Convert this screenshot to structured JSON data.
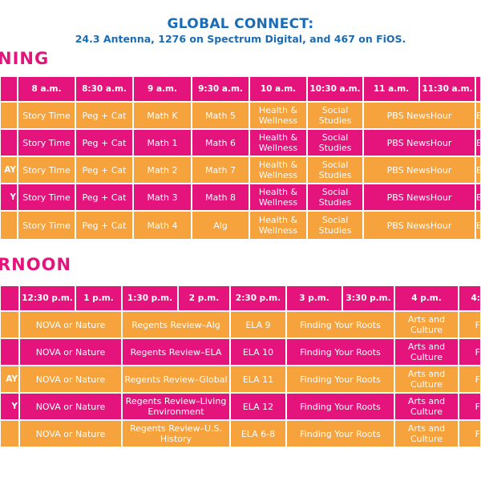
{
  "header": {
    "title": "GLOBAL CONNECT:",
    "subtitle": "24.3 Antenna, 1276 on Spectrum Digital, and 467 on FiOS."
  },
  "morning": {
    "label": "NING",
    "times": [
      "8 a.m.",
      "8:30 a.m.",
      "9 a.m.",
      "9:30 a.m.",
      "10 a.m.",
      "10:30 a.m.",
      "11 a.m.",
      "11:30 a.m."
    ],
    "rows": [
      {
        "day": "",
        "cells": [
          "Story Time",
          "Peg + Cat",
          "Math K",
          "Math 5",
          "Health & Wellness",
          "Social Studies",
          "PBS NewsHour"
        ],
        "edge": "E"
      },
      {
        "day": "",
        "cells": [
          "Story Time",
          "Peg + Cat",
          "Math 1",
          "Math 6",
          "Health & Wellness",
          "Social Studies",
          "PBS NewsHour"
        ],
        "edge": "E"
      },
      {
        "day": "AY",
        "cells": [
          "Story Time",
          "Peg + Cat",
          "Math 2",
          "Math 7",
          "Health & Wellness",
          "Social Studies",
          "PBS NewsHour"
        ],
        "edge": "E"
      },
      {
        "day": "Y",
        "cells": [
          "Story Time",
          "Peg + Cat",
          "Math 3",
          "Math 8",
          "Health & Wellness",
          "Social Studies",
          "PBS NewsHour"
        ],
        "edge": "E"
      },
      {
        "day": "",
        "cells": [
          "Story Time",
          "Peg + Cat",
          "Math 4",
          "Alg",
          "Health & Wellness",
          "Social Studies",
          "PBS NewsHour"
        ],
        "edge": "E"
      }
    ]
  },
  "afternoon": {
    "label": "RNOON",
    "times": [
      "12:30 p.m.",
      "1 p.m.",
      "1:30 p.m.",
      "2 p.m.",
      "2:30 p.m.",
      "3 p.m.",
      "3:30 p.m.",
      "4 p.m.",
      "4:"
    ],
    "rows": [
      {
        "day": "",
        "cells": [
          "NOVA or Nature",
          "Regents Review–Alg",
          "ELA 9",
          "Finding Your Roots",
          "Arts and Culture"
        ],
        "edge": "F"
      },
      {
        "day": "",
        "cells": [
          "NOVA or Nature",
          "Regents Review–ELA",
          "ELA 10",
          "Finding Your Roots",
          "Arts and Culture"
        ],
        "edge": "F"
      },
      {
        "day": "AY",
        "cells": [
          "NOVA or Nature",
          "Regents Review–Global",
          "ELA 11",
          "Finding Your Roots",
          "Arts and Culture"
        ],
        "edge": "F"
      },
      {
        "day": "Y",
        "cells": [
          "NOVA or Nature",
          "Regents Review–Living Environment",
          "ELA 12",
          "Finding Your Roots",
          "Arts and Culture"
        ],
        "edge": "F"
      },
      {
        "day": "",
        "cells": [
          "NOVA or Nature",
          "Regents Review–U.S. History",
          "ELA 6-8",
          "Finding Your Roots",
          "Arts and Culture"
        ],
        "edge": "F"
      }
    ]
  }
}
